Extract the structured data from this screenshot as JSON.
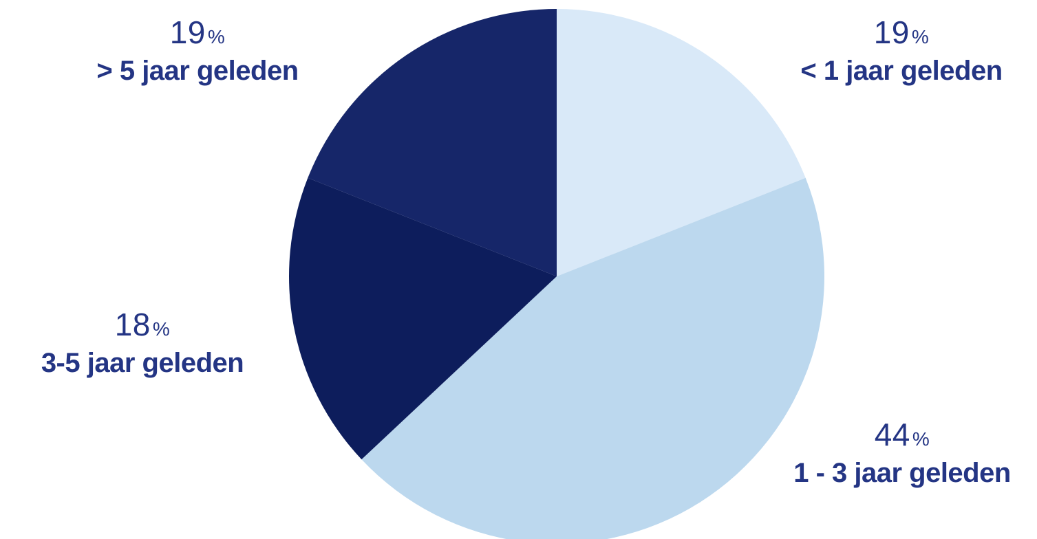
{
  "chart_data": {
    "type": "pie",
    "unit": "%",
    "slices": [
      {
        "label": "< 1 jaar geleden",
        "value": 19,
        "color": "#d9e9f8"
      },
      {
        "label": "1 - 3 jaar geleden",
        "value": 44,
        "color": "#bcd8ee"
      },
      {
        "label": "3-5 jaar geleden",
        "value": 18,
        "color": "#0d1d5c"
      },
      {
        "label": "> 5 jaar geleden",
        "value": 19,
        "color": "#162669"
      }
    ],
    "label_color": "#243584"
  }
}
